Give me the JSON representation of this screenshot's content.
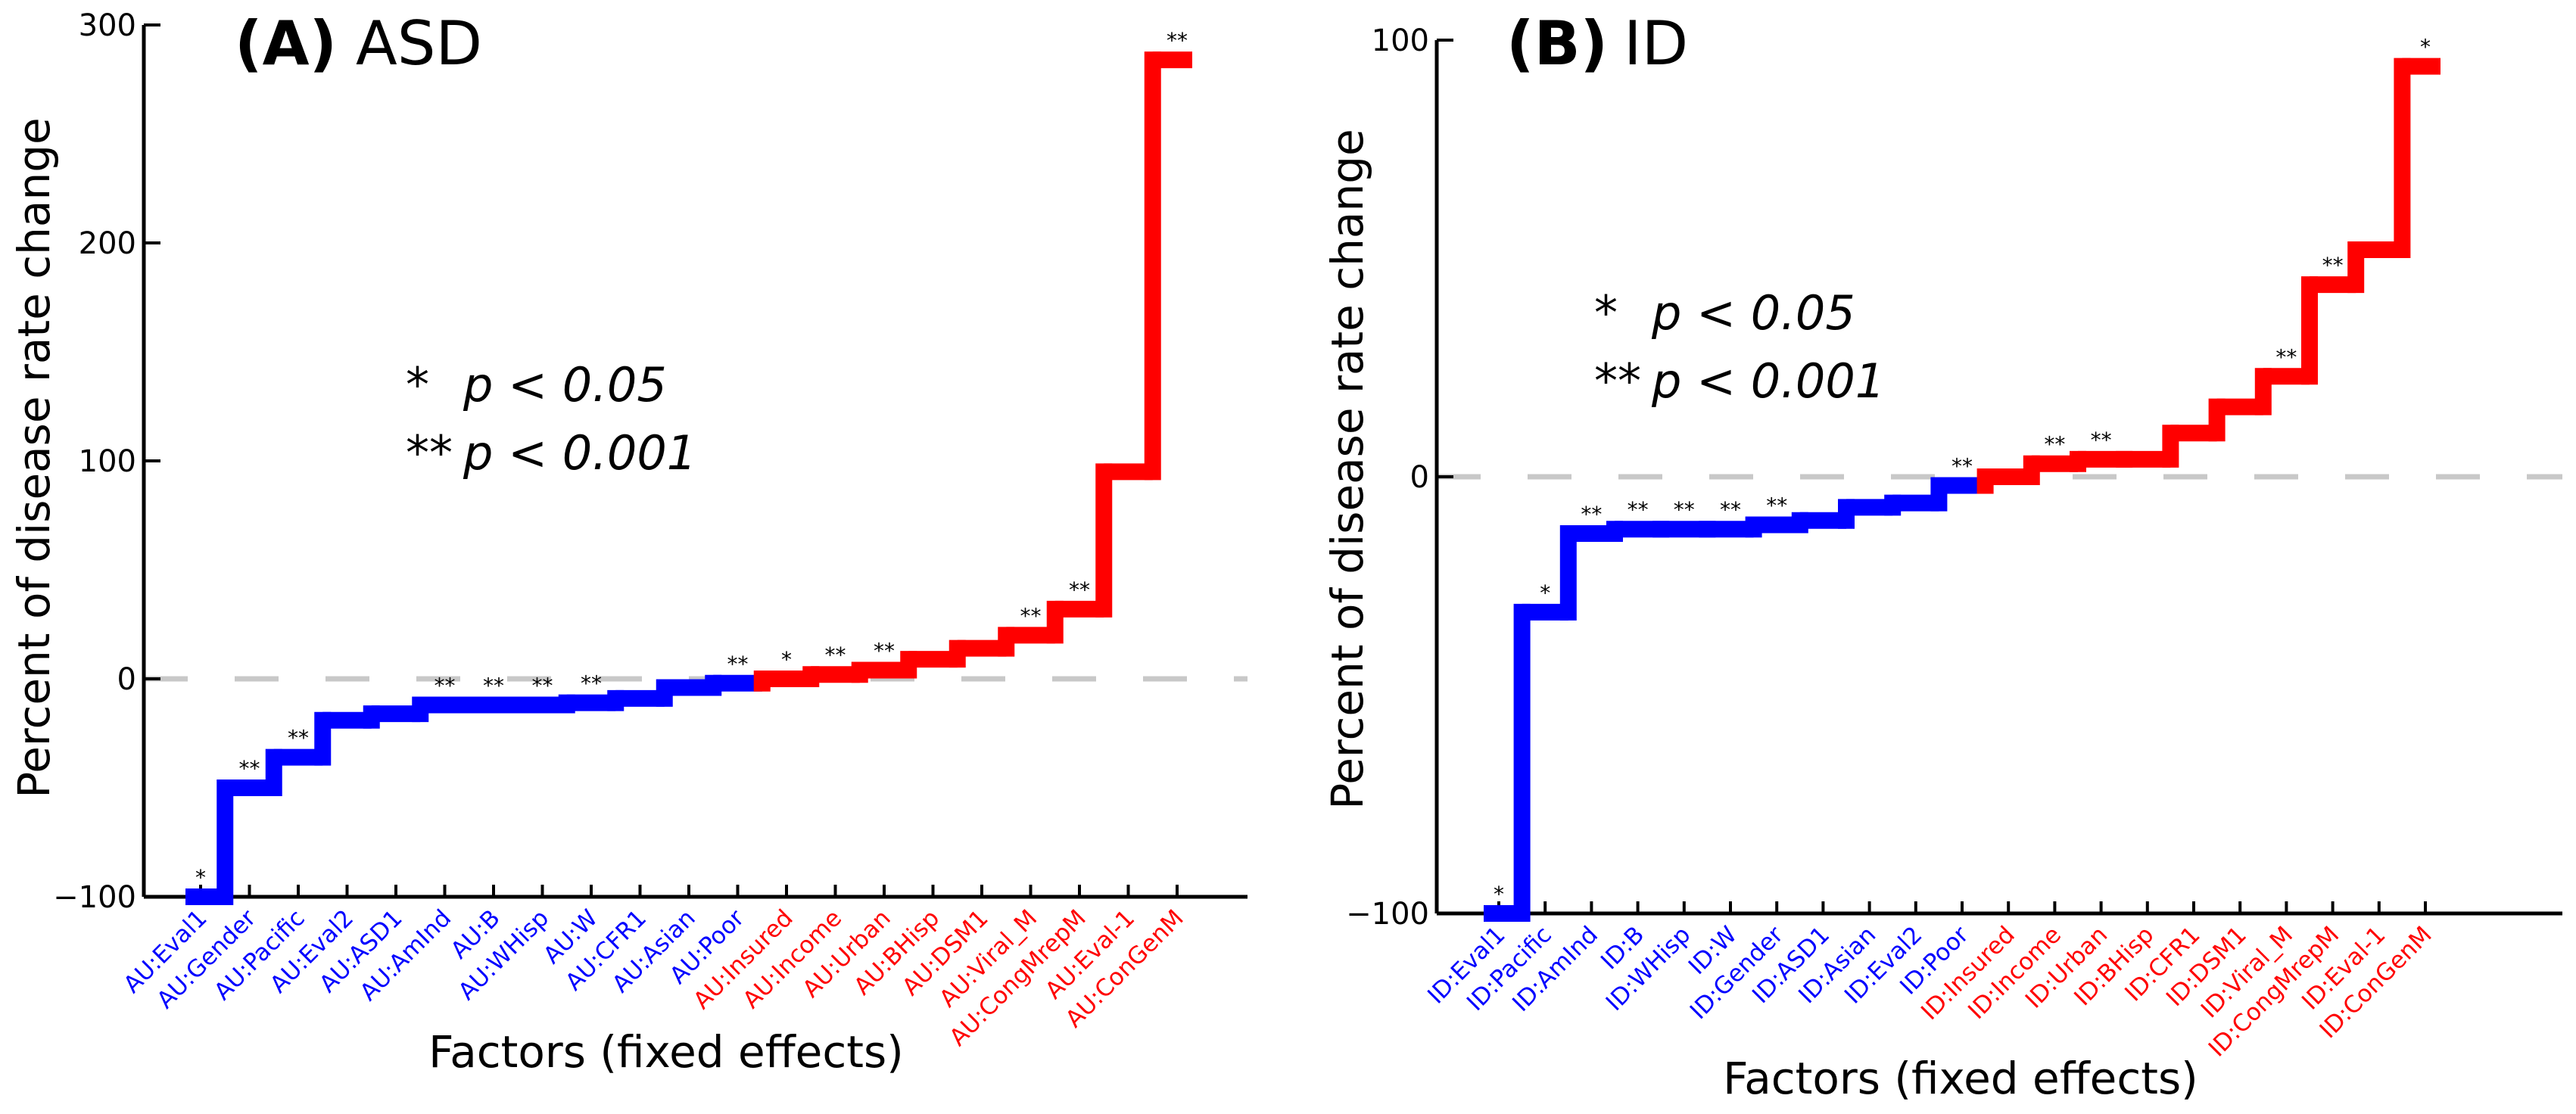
{
  "colors": {
    "negative": "#0000ff",
    "positive": "#ff0000",
    "zero_line": "#c8c8c8",
    "axis": "#000000"
  },
  "legend": {
    "line1_stars": "*",
    "line1_text": "p < 0.05",
    "line2_stars": "**",
    "line2_text": "p < 0.001"
  },
  "chart_data": [
    {
      "type": "line",
      "style": "step",
      "panel_label": "(A)",
      "title": "ASD",
      "xlabel": "Factors (fixed effects)",
      "ylabel": "Percent of disease rate change",
      "ylim": [
        -100,
        300
      ],
      "yticks": [
        -100,
        0,
        100,
        200,
        300
      ],
      "ytick_labels": [
        "−100",
        "0",
        "100",
        "200",
        "300"
      ],
      "zero_line": "dashed",
      "grid": false,
      "categories": [
        "AU:Eval1",
        "AU:Gender",
        "AU:Pacific",
        "AU:Eval2",
        "AU:ASD1",
        "AU:AmInd",
        "AU:B",
        "AU:WHisp",
        "AU:W",
        "AU:CFR1",
        "AU:Asian",
        "AU:Poor",
        "AU:Insured",
        "AU:Income",
        "AU:Urban",
        "AU:BHisp",
        "AU:DSM1",
        "AU:Viral_M",
        "AU:CongMrepM",
        "AU:Eval-1",
        "AU:ConGenM"
      ],
      "values": [
        -100,
        -50,
        -36,
        -19,
        -16,
        -12,
        -12,
        -12,
        -11,
        -9,
        -4,
        -2,
        0,
        2,
        4,
        9,
        14,
        20,
        32,
        95,
        284
      ],
      "significance": [
        "*",
        "**",
        "**",
        "",
        "",
        "**",
        "**",
        "**",
        "**",
        "",
        "",
        "**",
        "*",
        "**",
        "**",
        "",
        "",
        "**",
        "**",
        "",
        "**"
      ]
    },
    {
      "type": "line",
      "style": "step",
      "panel_label": "(B)",
      "title": "ID",
      "xlabel": "Factors (fixed effects)",
      "ylabel": "Percent of disease rate change",
      "ylim": [
        -100,
        100
      ],
      "yticks": [
        -100,
        0,
        100
      ],
      "ytick_labels": [
        "−100",
        "0",
        "100"
      ],
      "zero_line": "dashed",
      "grid": false,
      "categories": [
        "ID:Eval1",
        "ID:Pacific",
        "ID:AmInd",
        "ID:B",
        "ID:WHisp",
        "ID:W",
        "ID:Gender",
        "ID:ASD1",
        "ID:Asian",
        "ID:Eval2",
        "ID:Poor",
        "ID:Insured",
        "ID:Income",
        "ID:Urban",
        "ID:BHisp",
        "ID:CFR1",
        "ID:DSM1",
        "ID:Viral_M",
        "ID:CongMrepM",
        "ID:Eval-1",
        "ID:ConGenM"
      ],
      "values": [
        -100,
        -31,
        -13,
        -12,
        -12,
        -12,
        -11,
        -10,
        -7,
        -6,
        -2,
        0,
        3,
        4,
        4,
        10,
        16,
        23,
        44,
        52,
        94
      ],
      "significance": [
        "*",
        "*",
        "**",
        "**",
        "**",
        "**",
        "**",
        "",
        "",
        "",
        "**",
        "",
        "**",
        "**",
        "",
        "",
        "",
        "**",
        "**",
        "",
        "*"
      ]
    }
  ]
}
